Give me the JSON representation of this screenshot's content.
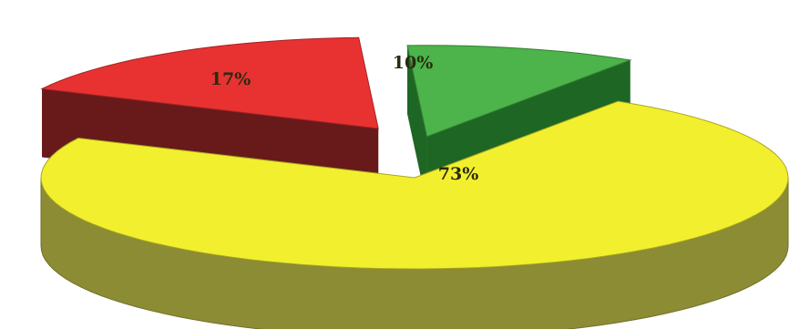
{
  "chart_data": {
    "type": "pie",
    "style": "3d-exploded",
    "slices": [
      {
        "label": "73%",
        "value": 73,
        "color": "#f2f02e",
        "side_color": "#8c8c34"
      },
      {
        "label": "17%",
        "value": 17,
        "color": "#e83232",
        "side_color": "#7a1f1f"
      },
      {
        "label": "10%",
        "value": 10,
        "color": "#4cb44a",
        "side_color": "#23782a"
      }
    ]
  }
}
